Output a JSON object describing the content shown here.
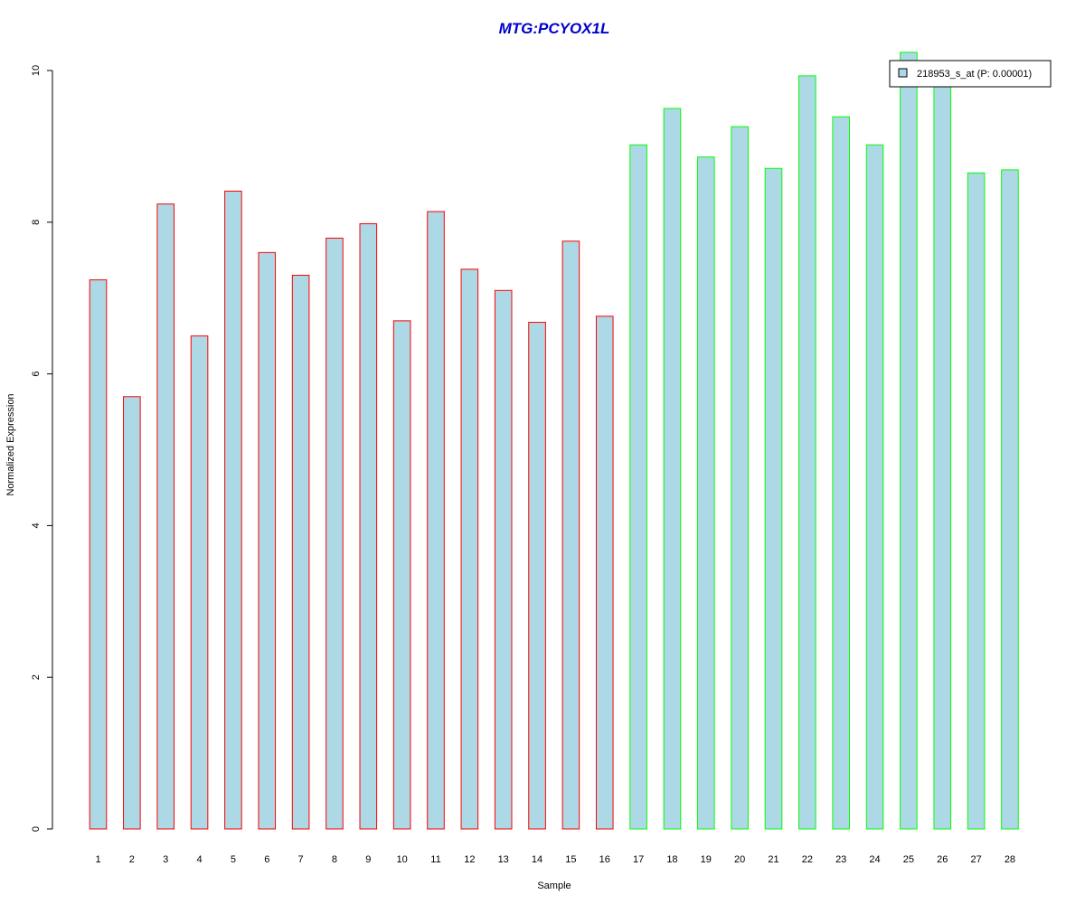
{
  "chart_data": {
    "type": "bar",
    "title": "MTG:PCYOX1L",
    "xlabel": "Sample",
    "ylabel": "Normalized Expression",
    "ylim": [
      0,
      10
    ],
    "yticks": [
      "0",
      "2",
      "4",
      "6",
      "8",
      "10"
    ],
    "categories": [
      "1",
      "2",
      "3",
      "4",
      "5",
      "6",
      "7",
      "8",
      "9",
      "10",
      "11",
      "12",
      "13",
      "14",
      "15",
      "16",
      "17",
      "18",
      "19",
      "20",
      "21",
      "22",
      "23",
      "24",
      "25",
      "26",
      "27",
      "28"
    ],
    "series": [
      {
        "name": "218953_s_at (P: 0.00001)",
        "values": [
          7.24,
          5.7,
          8.24,
          6.5,
          8.41,
          7.6,
          7.3,
          7.79,
          7.98,
          6.7,
          8.14,
          7.38,
          7.1,
          6.68,
          7.75,
          6.76,
          9.02,
          9.5,
          8.86,
          9.26,
          8.71,
          9.93,
          9.39,
          9.02,
          10.24,
          9.88,
          8.65,
          8.69
        ]
      }
    ],
    "group_edge_colors": [
      "#ff0000",
      "#ff0000",
      "#ff0000",
      "#ff0000",
      "#ff0000",
      "#ff0000",
      "#ff0000",
      "#ff0000",
      "#ff0000",
      "#ff0000",
      "#ff0000",
      "#ff0000",
      "#ff0000",
      "#ff0000",
      "#ff0000",
      "#ff0000",
      "#00ff00",
      "#00ff00",
      "#00ff00",
      "#00ff00",
      "#00ff00",
      "#00ff00",
      "#00ff00",
      "#00ff00",
      "#00ff00",
      "#00ff00",
      "#00ff00",
      "#00ff00"
    ],
    "bar_fill": "#add8e6",
    "title_color": "#0000cd",
    "legend_position": "top-right",
    "grid": false
  }
}
